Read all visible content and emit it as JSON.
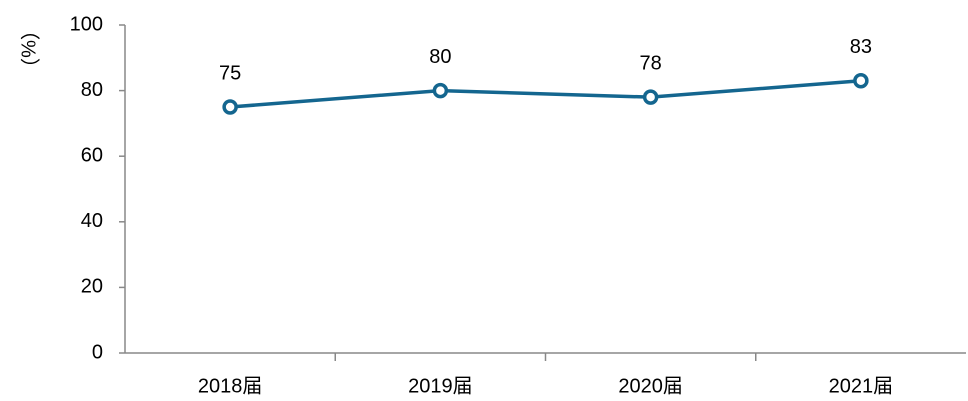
{
  "chart_data": {
    "type": "line",
    "y_label": "（%）",
    "categories": [
      "2018届",
      "2019届",
      "2020届",
      "2021届"
    ],
    "series": [
      {
        "name": null,
        "color": "#14668f",
        "values": [
          75,
          80,
          78,
          83
        ]
      }
    ],
    "ylim": [
      0,
      100
    ],
    "yticks": [
      0,
      20,
      40,
      60,
      80,
      100
    ],
    "grid": false
  }
}
